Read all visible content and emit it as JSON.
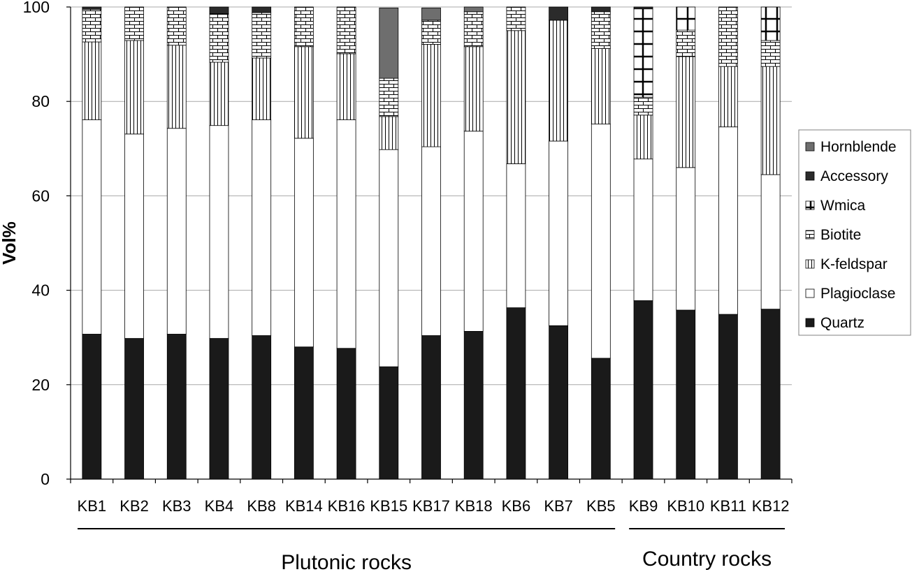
{
  "chart_data": {
    "type": "bar",
    "stacked": true,
    "ylabel": "Vol%",
    "xlabel": "",
    "ylim": [
      0,
      100
    ],
    "yticks": [
      0,
      20,
      40,
      60,
      80,
      100
    ],
    "grid": true,
    "legend_position": "right",
    "categories": [
      "KB1",
      "KB2",
      "KB3",
      "KB4",
      "KB8",
      "KB14",
      "KB16",
      "KB15",
      "KB17",
      "KB18",
      "KB6",
      "KB7",
      "KB5",
      "KB9",
      "KB10",
      "KB11",
      "KB12"
    ],
    "groups": [
      {
        "label": "Plutonic rocks",
        "categories": [
          "KB1",
          "KB2",
          "KB3",
          "KB4",
          "KB8",
          "KB14",
          "KB16",
          "KB15",
          "KB17",
          "KB18",
          "KB6",
          "KB7",
          "KB5"
        ]
      },
      {
        "label": "Country rocks",
        "categories": [
          "KB9",
          "KB10",
          "KB11",
          "KB12"
        ]
      }
    ],
    "series": [
      {
        "name": "Quartz",
        "pattern": "solid-black",
        "values": [
          30.7,
          29.8,
          30.7,
          29.8,
          30.4,
          28.0,
          27.7,
          23.8,
          30.4,
          31.3,
          36.3,
          32.5,
          25.6,
          37.8,
          35.8,
          34.9,
          36.0
        ]
      },
      {
        "name": "Plagioclase",
        "pattern": "white",
        "values": [
          45.4,
          43.3,
          43.6,
          45.1,
          45.7,
          44.2,
          48.4,
          46.0,
          40.0,
          42.4,
          30.5,
          39.1,
          49.6,
          30.0,
          30.2,
          39.7,
          28.5
        ]
      },
      {
        "name": "K-feldspar",
        "pattern": "vertical-lines",
        "values": [
          16.5,
          19.8,
          17.6,
          13.4,
          13.1,
          19.4,
          14.0,
          7.0,
          21.7,
          17.9,
          28.2,
          25.6,
          16.0,
          9.3,
          23.5,
          12.8,
          22.9
        ]
      },
      {
        "name": "Biotite",
        "pattern": "brick",
        "values": [
          6.9,
          7.1,
          8.1,
          10.3,
          9.6,
          8.4,
          9.9,
          8.1,
          5.1,
          7.4,
          5.0,
          0,
          7.8,
          3.8,
          5.6,
          12.6,
          5.5
        ]
      },
      {
        "name": "Wmica",
        "pattern": "cross",
        "values": [
          0,
          0,
          0,
          0,
          0,
          0,
          0,
          0,
          0,
          0,
          0,
          0,
          0,
          18.7,
          4.9,
          0,
          7.1
        ]
      },
      {
        "name": "Accessory",
        "pattern": "solid-dark",
        "values": [
          0.5,
          0,
          0,
          1.4,
          1.2,
          0,
          0,
          0,
          0,
          0,
          0,
          2.8,
          1.0,
          0.4,
          0,
          0,
          0
        ]
      },
      {
        "name": "Hornblende",
        "pattern": "solid-grey",
        "values": [
          0,
          0,
          0,
          0,
          0,
          0,
          0,
          14.9,
          2.6,
          1.0,
          0,
          0,
          0,
          0,
          0,
          0,
          0
        ]
      }
    ],
    "legend_order": [
      "Hornblende",
      "Accessory",
      "Wmica",
      "Biotite",
      "K-feldspar",
      "Plagioclase",
      "Quartz"
    ]
  }
}
